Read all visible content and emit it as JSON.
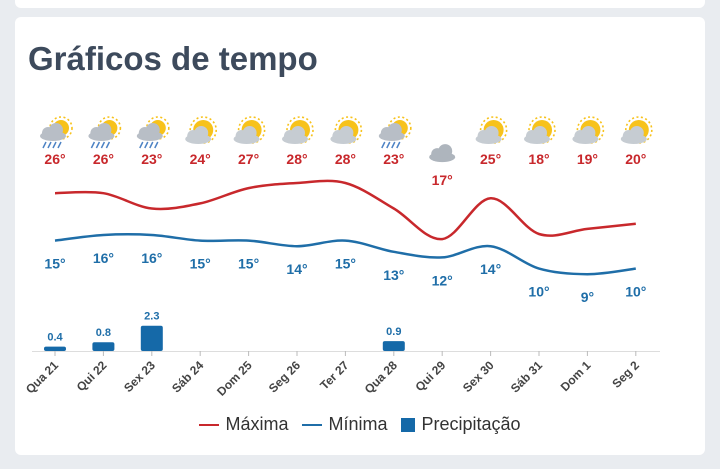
{
  "title": "Gráficos de tempo",
  "colors": {
    "max": "#c8282c",
    "min": "#1f6ea8",
    "precip": "#1569a8"
  },
  "legend": {
    "max": "Máxima",
    "min": "Mínima",
    "precip": "Precipitação"
  },
  "chart_data": {
    "type": "line",
    "categories": [
      "Qua 21",
      "Qui 22",
      "Sex 23",
      "Sáb 24",
      "Dom 25",
      "Seg 26",
      "Ter 27",
      "Qua 28",
      "Qui 29",
      "Sex 30",
      "Sáb 31",
      "Dom 1",
      "Seg 2"
    ],
    "series": [
      {
        "name": "Máxima",
        "values": [
          26,
          26,
          23,
          24,
          27,
          28,
          28,
          23,
          17,
          25,
          18,
          19,
          20
        ]
      },
      {
        "name": "Mínima",
        "values": [
          15,
          16,
          16,
          15,
          15,
          14,
          15,
          13,
          12,
          14,
          10,
          9,
          10
        ]
      },
      {
        "name": "Precipitação",
        "type": "bar",
        "values": [
          0.4,
          0.8,
          2.3,
          0,
          0,
          0,
          0,
          0.9,
          0,
          0,
          0,
          0,
          0
        ],
        "labels": [
          "0.4",
          "0.8",
          "2.3",
          "",
          "",
          "",
          "",
          "0.9",
          "",
          "",
          "",
          "",
          ""
        ]
      }
    ],
    "temp_unit": "°",
    "icons": [
      "rain-sun-icon",
      "rain-sun-icon",
      "rain-sun-icon",
      "partly-cloudy-icon",
      "partly-cloudy-icon",
      "partly-cloudy-icon",
      "partly-cloudy-icon",
      "rain-sun-icon",
      "cloudy-icon",
      "partly-cloudy-icon",
      "partly-cloudy-icon",
      "partly-cloudy-icon",
      "partly-cloudy-icon"
    ],
    "legend_position": "bottom",
    "grid": false
  }
}
